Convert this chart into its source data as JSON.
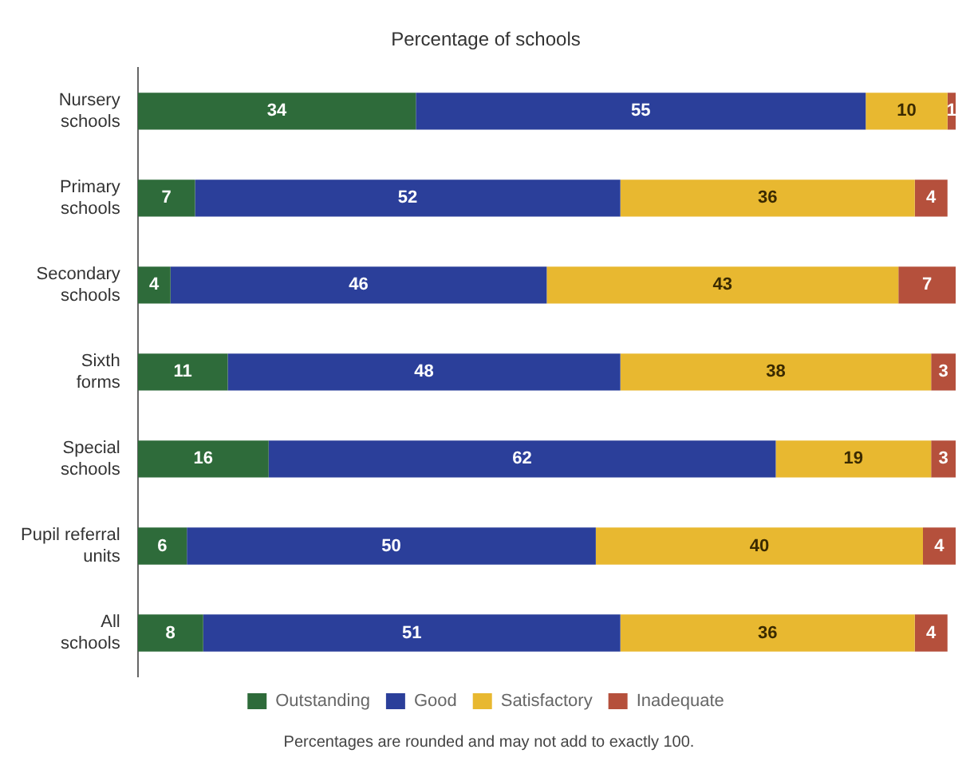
{
  "chart_data": {
    "type": "bar",
    "orientation": "horizontal",
    "stacked": true,
    "title": "Percentage of schools",
    "categories": [
      "Nursery schools",
      "Primary schools",
      "Secondary schools",
      "Sixth forms",
      "Special schools",
      "Pupil referral units",
      "All schools"
    ],
    "series": [
      {
        "name": "Outstanding",
        "color": "#2e6b3a",
        "values": [
          34,
          7,
          4,
          11,
          16,
          6,
          8
        ]
      },
      {
        "name": "Good",
        "color": "#2b3f9a",
        "values": [
          55,
          52,
          46,
          48,
          62,
          50,
          51
        ]
      },
      {
        "name": "Satisfactory",
        "color": "#e8b830",
        "values": [
          10,
          36,
          43,
          38,
          19,
          40,
          36
        ]
      },
      {
        "name": "Inadequate",
        "color": "#b5503c",
        "values": [
          1,
          4,
          7,
          3,
          3,
          4,
          4
        ]
      }
    ],
    "xlim": [
      0,
      100
    ],
    "tick_labels": "y",
    "legend": "bottom",
    "data_labels": true,
    "annotations": [
      "Percentages are rounded and may not add to exactly 100."
    ]
  }
}
